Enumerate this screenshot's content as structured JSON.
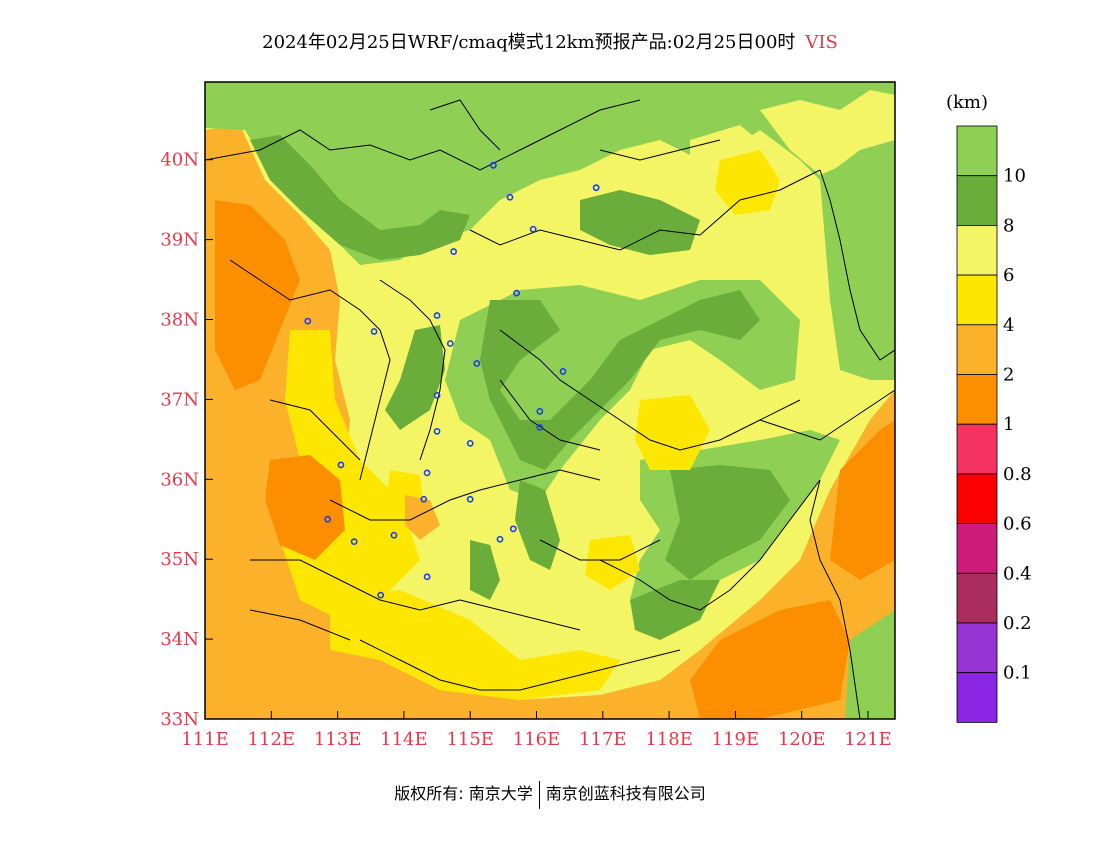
{
  "title": {
    "main": "2024年02月25日WRF/cmaq模式12km预报产品:02月25日00时",
    "variable": "VIS"
  },
  "colors": {
    "title_var": "#e8394a",
    "tick": "#e8394a",
    "green_light": "#8fcf54",
    "green_dark": "#6aad3a",
    "yellow_light": "#f3f565",
    "yellow": "#fde600",
    "orange_light": "#fbb12a",
    "orange": "#fb8f00",
    "pink": "#f43360",
    "red": "#fb0000",
    "magenta": "#cc1b78",
    "maroon": "#ab2d5e",
    "purple": "#9735d4",
    "violet": "#8a25e3"
  },
  "map": {
    "lon_ticks": [
      "111E",
      "112E",
      "113E",
      "114E",
      "115E",
      "116E",
      "117E",
      "118E",
      "119E",
      "120E",
      "121E"
    ],
    "lat_ticks": [
      "40N",
      "39N",
      "38N",
      "37N",
      "36N",
      "35N",
      "34N",
      "33N"
    ],
    "stations": [
      {
        "lon": 115.35,
        "lat": 39.93
      },
      {
        "lon": 115.6,
        "lat": 39.53
      },
      {
        "lon": 116.9,
        "lat": 39.65
      },
      {
        "lon": 115.95,
        "lat": 39.13
      },
      {
        "lon": 114.75,
        "lat": 38.85
      },
      {
        "lon": 114.5,
        "lat": 38.05
      },
      {
        "lon": 112.55,
        "lat": 37.98
      },
      {
        "lon": 113.55,
        "lat": 37.85
      },
      {
        "lon": 115.7,
        "lat": 38.33
      },
      {
        "lon": 114.7,
        "lat": 37.7
      },
      {
        "lon": 115.1,
        "lat": 37.45
      },
      {
        "lon": 116.4,
        "lat": 37.35
      },
      {
        "lon": 114.5,
        "lat": 37.05
      },
      {
        "lon": 114.5,
        "lat": 36.6
      },
      {
        "lon": 115.0,
        "lat": 36.45
      },
      {
        "lon": 116.05,
        "lat": 36.65
      },
      {
        "lon": 116.05,
        "lat": 36.85
      },
      {
        "lon": 113.05,
        "lat": 36.18
      },
      {
        "lon": 114.35,
        "lat": 36.08
      },
      {
        "lon": 114.3,
        "lat": 35.75
      },
      {
        "lon": 115.0,
        "lat": 35.75
      },
      {
        "lon": 112.85,
        "lat": 35.5
      },
      {
        "lon": 113.25,
        "lat": 35.22
      },
      {
        "lon": 113.85,
        "lat": 35.3
      },
      {
        "lon": 115.45,
        "lat": 35.25
      },
      {
        "lon": 115.65,
        "lat": 35.38
      },
      {
        "lon": 114.35,
        "lat": 34.78
      },
      {
        "lon": 113.65,
        "lat": 34.55
      }
    ]
  },
  "colorbar": {
    "unit": "(km)",
    "labels": [
      "10",
      "8",
      "6",
      "4",
      "2",
      "1",
      "0.8",
      "0.6",
      "0.4",
      "0.2",
      "0.1"
    ],
    "segments": [
      "green_light",
      "green_dark",
      "yellow_light",
      "yellow",
      "orange_light",
      "orange",
      "pink",
      "red",
      "magenta",
      "maroon",
      "purple",
      "violet"
    ]
  },
  "copyright": {
    "left": "版权所有: 南京大学",
    "right": "南京创蓝科技有限公司"
  }
}
